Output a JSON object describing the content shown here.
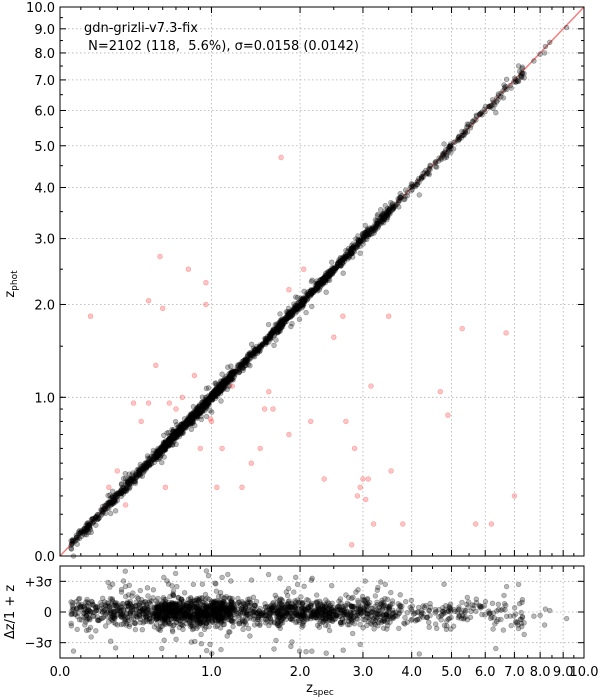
{
  "chart_data": [
    {
      "type": "scatter",
      "panel": "main",
      "title": "",
      "annotation_line1": "gdn-grizli-v7.3-fix",
      "annotation_line2": " N=2102 (118,  5.6%), σ=0.0158 (0.0142)",
      "xlabel": "",
      "ylabel_main": "z",
      "ylabel_sub": "phot",
      "axis_scale": "log(1+z)",
      "xlim": [
        0,
        10
      ],
      "ylim": [
        0,
        10
      ],
      "grid": true,
      "xticks": [
        0,
        1,
        2,
        3,
        4,
        5,
        6,
        7,
        8,
        9,
        10
      ],
      "xtick_labels": [
        "",
        "",
        "",
        "",
        "",
        "",
        "",
        "",
        "",
        "",
        ""
      ],
      "yticks": [
        0,
        1,
        2,
        3,
        4,
        5,
        6,
        7,
        8,
        9,
        10
      ],
      "ytick_labels": [
        "0.0",
        "1.0",
        "2.0",
        "3.0",
        "4.0",
        "5.0",
        "6.0",
        "7.0",
        "8.0",
        "9.0",
        "10.0"
      ],
      "one_to_one_line": true,
      "line_color": "#f08080",
      "point_color_good": "#000000",
      "point_color_outlier": "#ff5a5a",
      "n_sources": 2102,
      "n_outliers": 118,
      "outlier_fraction_pct": 5.6,
      "sigma_nmad": 0.0158,
      "sigma_nmad_clipped": 0.0142,
      "outliers": [
        [
          0.15,
          1.85
        ],
        [
          0.35,
          0.25
        ],
        [
          0.5,
          2.05
        ],
        [
          0.55,
          1.3
        ],
        [
          0.6,
          1.95
        ],
        [
          0.4,
          0.95
        ],
        [
          0.5,
          0.95
        ],
        [
          0.65,
          0.95
        ],
        [
          0.7,
          0.9
        ],
        [
          0.75,
          1.0
        ],
        [
          0.8,
          2.5
        ],
        [
          0.85,
          1.2
        ],
        [
          0.9,
          0.6
        ],
        [
          0.95,
          2.0
        ],
        [
          0.95,
          2.3
        ],
        [
          1.05,
          0.35
        ],
        [
          1.1,
          0.6
        ],
        [
          1.2,
          1.1
        ],
        [
          1.3,
          0.35
        ],
        [
          1.4,
          0.5
        ],
        [
          1.5,
          0.6
        ],
        [
          1.55,
          0.9
        ],
        [
          1.6,
          1.05
        ],
        [
          1.65,
          0.9
        ],
        [
          1.75,
          4.7
        ],
        [
          1.85,
          0.7
        ],
        [
          2.05,
          2.5
        ],
        [
          2.15,
          0.8
        ],
        [
          2.35,
          0.4
        ],
        [
          2.5,
          1.6
        ],
        [
          2.65,
          1.85
        ],
        [
          2.7,
          0.8
        ],
        [
          2.8,
          0.05
        ],
        [
          2.85,
          0.6
        ],
        [
          2.95,
          0.35
        ],
        [
          3.0,
          0.4
        ],
        [
          3.1,
          0.4
        ],
        [
          3.15,
          1.1
        ],
        [
          3.2,
          0.15
        ],
        [
          3.5,
          1.85
        ],
        [
          3.55,
          0.45
        ],
        [
          3.8,
          0.15
        ],
        [
          4.7,
          1.05
        ],
        [
          4.9,
          0.85
        ],
        [
          5.3,
          1.7
        ],
        [
          5.7,
          0.15
        ],
        [
          6.2,
          0.15
        ],
        [
          6.7,
          1.65
        ],
        [
          7.0,
          0.3
        ],
        [
          0.45,
          0.8
        ],
        [
          0.3,
          0.45
        ],
        [
          0.25,
          0.35
        ],
        [
          0.62,
          0.35
        ],
        [
          1.85,
          2.2
        ],
        [
          0.58,
          2.7
        ],
        [
          1.0,
          0.8
        ],
        [
          0.99,
          0.82
        ],
        [
          2.9,
          0.3
        ],
        [
          3.05,
          0.28
        ]
      ]
    },
    {
      "type": "scatter",
      "panel": "residual",
      "xlabel_main": "z",
      "xlabel_sub": "spec",
      "ylabel": "Δz/1 + z",
      "xlim": [
        0,
        10
      ],
      "ylim_sigma": [
        -4.5,
        4.5
      ],
      "yticks_sigma": [
        3,
        0,
        -3
      ],
      "ytick_labels": [
        "+3σ",
        "0",
        "−3σ"
      ],
      "xticks": [
        0,
        1,
        2,
        3,
        4,
        5,
        6,
        7,
        8,
        9,
        10
      ],
      "xtick_labels": [
        "0.0",
        "1.0",
        "2.0",
        "3.0",
        "4.0",
        "5.0",
        "6.0",
        "7.0",
        "8.0",
        "9.0",
        "10.0"
      ],
      "grid": true
    }
  ]
}
